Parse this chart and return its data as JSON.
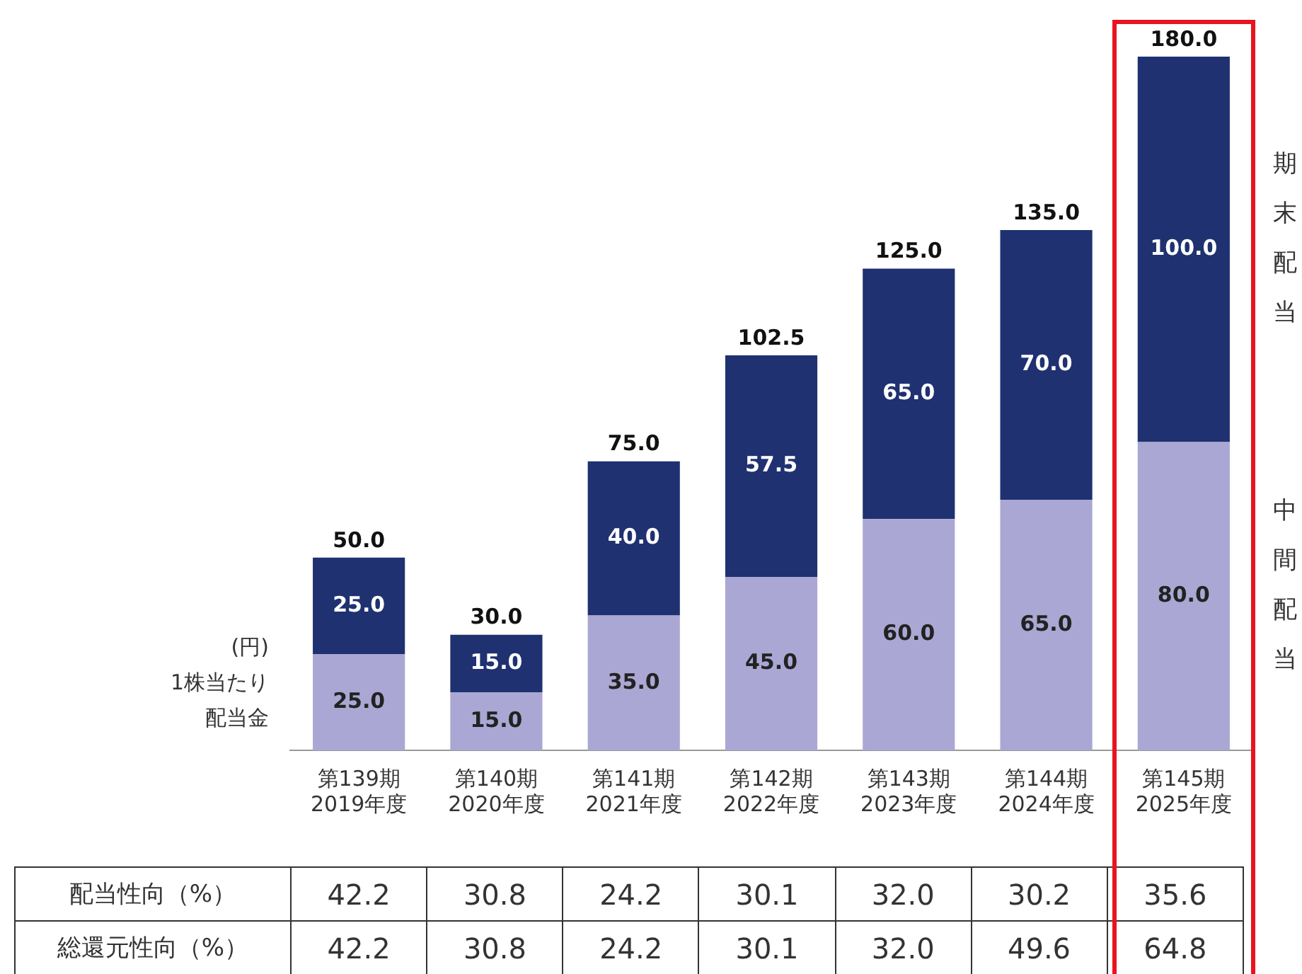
{
  "chart_data": {
    "type": "bar",
    "stacked": true,
    "grid": false,
    "legend": false,
    "tick_labels": "x",
    "ylabel": "(円)\n1株当たり配当金",
    "categories": [
      "第139期\n2019年度",
      "第140期\n2020年度",
      "第141期\n2021年度",
      "第142期\n2022年度",
      "第143期\n2023年度",
      "第144期\n2024年度",
      "第145期\n2025年度"
    ],
    "series": [
      {
        "name": "中間配当",
        "color": "#aaa7d4",
        "values": [
          25.0,
          15.0,
          35.0,
          45.0,
          60.0,
          65.0,
          80.0
        ],
        "value_labels": [
          "25.0",
          "15.0",
          "35.0",
          "45.0",
          "60.0",
          "65.0",
          "80.0"
        ]
      },
      {
        "name": "期末配当",
        "color": "#1f3170",
        "values": [
          25.0,
          15.0,
          40.0,
          57.5,
          65.0,
          70.0,
          100.0
        ],
        "value_labels": [
          "25.0",
          "15.0",
          "40.0",
          "57.5",
          "65.0",
          "70.0",
          "100.0"
        ]
      }
    ],
    "totals": [
      "50.0",
      "30.0",
      "75.0",
      "102.5",
      "125.0",
      "135.0",
      "180.0"
    ],
    "annotations": [
      "配当性向（%）",
      "42.2",
      "30.8",
      "24.2",
      "30.1",
      "32.0",
      "30.2",
      "35.6",
      "総還元性向（%）",
      "42.2",
      "30.8",
      "24.2",
      "30.1",
      "32.0",
      "49.6",
      "64.8"
    ]
  }
}
